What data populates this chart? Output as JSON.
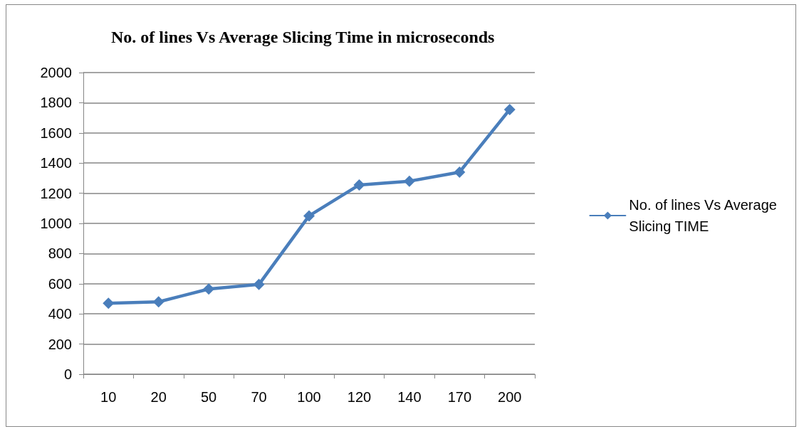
{
  "chart_data": {
    "type": "line",
    "title": "No. of lines Vs Average Slicing Time in microseconds",
    "categories": [
      "10",
      "20",
      "50",
      "70",
      "100",
      "120",
      "140",
      "170",
      "200"
    ],
    "series": [
      {
        "name": "No. of lines Vs Average Slicing TIME",
        "color": "#4a7ebb",
        "values": [
          470,
          480,
          565,
          595,
          1050,
          1255,
          1280,
          1340,
          1755
        ]
      }
    ],
    "ylim": [
      0,
      2000
    ],
    "yticks": [
      0,
      200,
      400,
      600,
      800,
      1000,
      1200,
      1400,
      1600,
      1800,
      2000
    ],
    "grid": "y",
    "legend": "right",
    "marker": "diamond",
    "line_style": "solid"
  }
}
